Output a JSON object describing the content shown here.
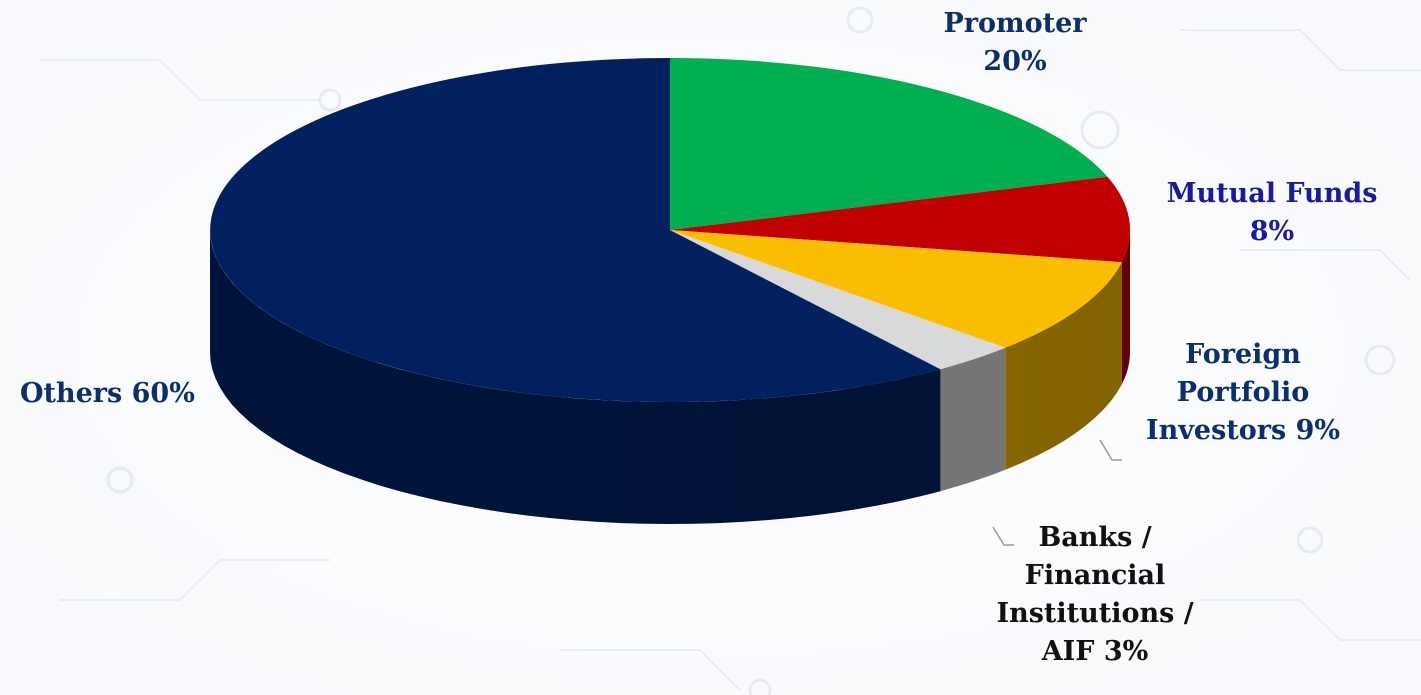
{
  "chart_data": {
    "type": "pie",
    "three_d": true,
    "slices": [
      {
        "name": "Promoter",
        "value": 20,
        "color": "#00B050",
        "label_lines": [
          "Promoter",
          "20%"
        ],
        "label_color": "#0A2F6B"
      },
      {
        "name": "Mutual Funds",
        "value": 8,
        "color": "#C00000",
        "label_lines": [
          "Mutual Funds",
          "8%"
        ],
        "label_color": "#1A1A9E"
      },
      {
        "name": "Foreign Portfolio Investors",
        "value": 9,
        "color": "#F9BE00",
        "label_lines": [
          "Foreign",
          "Portfolio",
          "Investors  9%"
        ],
        "label_color": "#0A2F6B"
      },
      {
        "name": "Banks / Financial Institutions / AIF",
        "value": 3,
        "color": "#D9D9D9",
        "label_lines": [
          "Banks /",
          "Financial",
          "Institutions /",
          "AIF 3%"
        ],
        "label_color": "#111111"
      },
      {
        "name": "Others",
        "value": 60,
        "color": "#002060",
        "label_lines": [
          "Others 60%"
        ],
        "label_color": "#0A2F6B"
      }
    ]
  }
}
